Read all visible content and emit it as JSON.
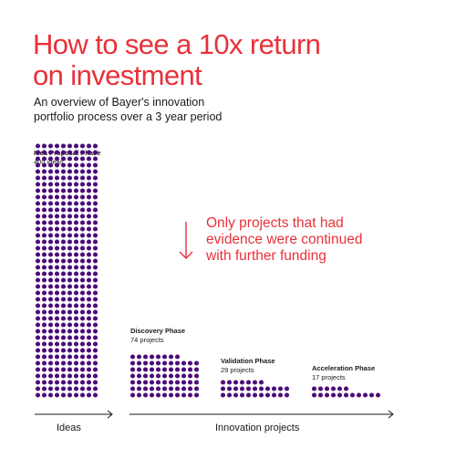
{
  "title_line1": "How to see a 10x return",
  "title_line2": "on investment",
  "subtitle_line1": "An overview of Bayer's innovation",
  "subtitle_line2": "portfolio process over a 3 year period",
  "annotation": {
    "line1": "Only projects that had",
    "line2": "evidence were continued",
    "line3": "with further funding"
  },
  "axis": {
    "left_label": "Ideas",
    "right_label": "Innovation projects"
  },
  "colors": {
    "dot": "#4b0d7a",
    "accent": "#e8313a",
    "text": "#1a1a1a"
  },
  "chart_data": {
    "type": "bar",
    "categories": [
      "Idea Proposal Phase",
      "Discovery Phase",
      "Validation Phase",
      "Acceleration Phase"
    ],
    "values": [
      400,
      74,
      29,
      17
    ],
    "count_labels": [
      "400 ideas",
      "74 projects",
      "29 projects",
      "17 projects"
    ]
  }
}
